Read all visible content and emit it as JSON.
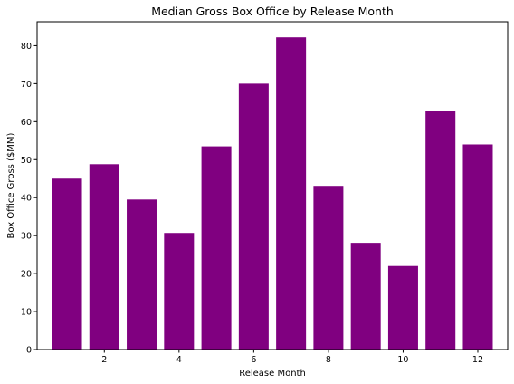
{
  "chart_data": {
    "type": "bar",
    "title": "Median Gross Box Office by Release Month",
    "xlabel": "Release Month",
    "ylabel": "Box Office Gross ($MM)",
    "x": [
      1,
      2,
      3,
      4,
      5,
      6,
      7,
      8,
      9,
      10,
      11,
      12
    ],
    "values": [
      45.0,
      48.8,
      39.5,
      30.7,
      53.5,
      70.0,
      82.2,
      43.1,
      28.1,
      22.0,
      62.7,
      54.0
    ],
    "xlim": [
      0.2,
      12.8
    ],
    "ylim": [
      0,
      86.3
    ],
    "xticks": [
      "2",
      "4",
      "6",
      "8",
      "10",
      "12"
    ],
    "yticks": [
      "0",
      "10",
      "20",
      "30",
      "40",
      "50",
      "60",
      "70",
      "80"
    ],
    "bar_color": "#800080",
    "grid": false
  }
}
